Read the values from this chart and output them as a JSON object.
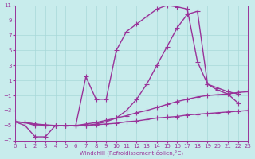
{
  "xlabel": "Windchill (Refroidissement éolien,°C)",
  "xlim": [
    0,
    23
  ],
  "ylim": [
    -7,
    11
  ],
  "xticks": [
    0,
    1,
    2,
    3,
    4,
    5,
    6,
    7,
    8,
    9,
    10,
    11,
    12,
    13,
    14,
    15,
    16,
    17,
    18,
    19,
    20,
    21,
    22,
    23
  ],
  "yticks": [
    -7,
    -5,
    -3,
    -1,
    1,
    3,
    5,
    7,
    9,
    11
  ],
  "bg_color": "#c8ecec",
  "grid_color": "#a8d8d8",
  "line_color": "#993399",
  "line_width": 1.0,
  "marker": "+",
  "marker_size": 4,
  "curves": [
    {
      "x": [
        0,
        1,
        2,
        3,
        4,
        5,
        6,
        7,
        8,
        9,
        10,
        11,
        12,
        13,
        14,
        15,
        16,
        17,
        18,
        19,
        20,
        21,
        22,
        23
      ],
      "y": [
        -4.5,
        -4.6,
        -4.8,
        -4.9,
        -5.0,
        -5.0,
        -5.0,
        -5.0,
        -4.9,
        -4.8,
        -4.7,
        -4.5,
        -4.4,
        -4.2,
        -4.0,
        -3.9,
        -3.8,
        -3.6,
        -3.5,
        -3.4,
        -3.3,
        -3.2,
        -3.1,
        -3.0
      ]
    },
    {
      "x": [
        0,
        1,
        2,
        3,
        4,
        5,
        6,
        7,
        8,
        9,
        10,
        11,
        12,
        13,
        14,
        15,
        16,
        17,
        18,
        19,
        20,
        21,
        22,
        23
      ],
      "y": [
        -4.5,
        -4.6,
        -4.8,
        -5.0,
        -5.0,
        -5.0,
        -5.0,
        -4.8,
        -4.6,
        -4.3,
        -4.0,
        -3.7,
        -3.3,
        -3.0,
        -2.6,
        -2.2,
        -1.8,
        -1.5,
        -1.2,
        -1.0,
        -0.9,
        -0.8,
        -0.6,
        -0.5
      ]
    },
    {
      "x": [
        0,
        1,
        2,
        3,
        4,
        5,
        6,
        7,
        8,
        9,
        10,
        11,
        12,
        13,
        14,
        15,
        16,
        17,
        18,
        19,
        20,
        21,
        22
      ],
      "y": [
        -4.5,
        -5.0,
        -6.5,
        -6.5,
        -5.0,
        -5.0,
        -5.0,
        -5.0,
        -4.8,
        -4.5,
        -4.0,
        -3.0,
        -1.5,
        0.5,
        3.0,
        5.5,
        8.0,
        9.8,
        10.2,
        0.5,
        -0.3,
        -0.8,
        -2.0
      ]
    },
    {
      "x": [
        0,
        1,
        2,
        3,
        4,
        5,
        6,
        7,
        8,
        9,
        10,
        11,
        12,
        13,
        14,
        15,
        16,
        17,
        18,
        19,
        20,
        21,
        22
      ],
      "y": [
        -4.5,
        -4.6,
        -5.0,
        -5.0,
        -5.0,
        -5.0,
        -5.0,
        1.5,
        -1.5,
        -1.5,
        5.0,
        7.5,
        8.5,
        9.5,
        10.5,
        11.0,
        10.8,
        10.5,
        3.5,
        0.5,
        0.0,
        -0.5,
        -0.8
      ]
    }
  ]
}
